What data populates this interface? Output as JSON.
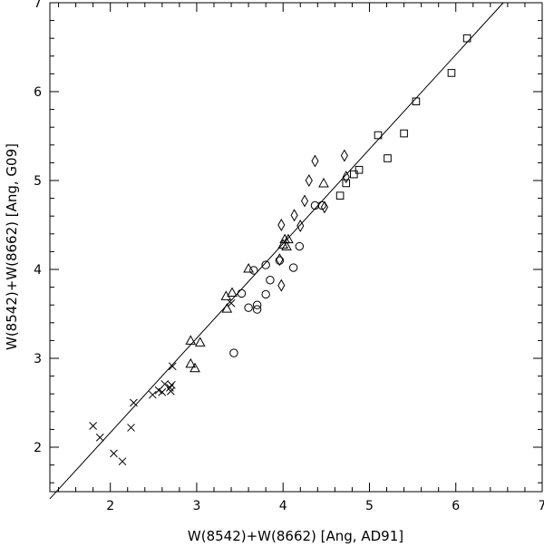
{
  "chart_data": {
    "type": "scatter",
    "title": "",
    "xlabel": "W(8542)+W(8662) [Ang, AD91]",
    "ylabel": "W(8542)+W(8662) [Ang, G09]",
    "xlim": [
      1.3,
      7.0
    ],
    "ylim": [
      1.5,
      7.0
    ],
    "xticks": [
      "2",
      "3",
      "4",
      "5",
      "6",
      "7"
    ],
    "yticks": [
      "2",
      "3",
      "4",
      "5",
      "6",
      "7"
    ],
    "grid": false,
    "reference_line": {
      "label": "",
      "points": [
        [
          1.3,
          1.42
        ],
        [
          6.55,
          7.0
        ]
      ]
    },
    "series": [
      {
        "marker": "cross",
        "points": [
          [
            1.8,
            2.24
          ],
          [
            1.88,
            2.11
          ],
          [
            2.04,
            1.93
          ],
          [
            2.14,
            1.84
          ],
          [
            2.24,
            2.22
          ],
          [
            2.27,
            2.5
          ],
          [
            2.49,
            2.59
          ],
          [
            2.56,
            2.64
          ],
          [
            2.6,
            2.62
          ],
          [
            2.63,
            2.71
          ],
          [
            2.69,
            2.67
          ],
          [
            2.71,
            2.7
          ],
          [
            2.7,
            2.63
          ],
          [
            2.72,
            2.91
          ],
          [
            3.4,
            3.62
          ]
        ]
      },
      {
        "marker": "triangle",
        "points": [
          [
            2.93,
            3.2
          ],
          [
            2.93,
            2.94
          ],
          [
            2.98,
            2.89
          ],
          [
            3.04,
            3.18
          ],
          [
            3.34,
            3.7
          ],
          [
            3.35,
            3.56
          ],
          [
            3.41,
            3.74
          ],
          [
            3.6,
            4.01
          ],
          [
            4.02,
            4.34
          ],
          [
            4.06,
            4.34
          ],
          [
            4.0,
            4.28
          ],
          [
            4.04,
            4.26
          ],
          [
            4.47,
            4.97
          ]
        ]
      },
      {
        "marker": "circle",
        "points": [
          [
            3.43,
            3.06
          ],
          [
            3.52,
            3.73
          ],
          [
            3.6,
            3.57
          ],
          [
            3.66,
            3.99
          ],
          [
            3.7,
            3.6
          ],
          [
            3.7,
            3.55
          ],
          [
            3.8,
            4.05
          ],
          [
            3.8,
            3.72
          ],
          [
            3.85,
            3.88
          ],
          [
            3.96,
            4.1
          ],
          [
            4.12,
            4.02
          ],
          [
            4.19,
            4.26
          ],
          [
            4.37,
            4.72
          ],
          [
            4.45,
            4.72
          ]
        ]
      },
      {
        "marker": "diamond",
        "points": [
          [
            3.96,
            4.11
          ],
          [
            3.98,
            4.5
          ],
          [
            3.98,
            3.82
          ],
          [
            4.13,
            4.61
          ],
          [
            4.2,
            4.49
          ],
          [
            4.25,
            4.77
          ],
          [
            4.3,
            5.0
          ],
          [
            4.37,
            5.22
          ],
          [
            4.48,
            4.7
          ],
          [
            4.71,
            5.28
          ],
          [
            4.73,
            5.04
          ]
        ]
      },
      {
        "marker": "square",
        "points": [
          [
            4.66,
            4.83
          ],
          [
            4.73,
            4.97
          ],
          [
            4.82,
            5.07
          ],
          [
            4.88,
            5.12
          ],
          [
            5.1,
            5.51
          ],
          [
            5.21,
            5.25
          ],
          [
            5.4,
            5.53
          ],
          [
            5.54,
            5.89
          ],
          [
            5.95,
            6.21
          ],
          [
            6.13,
            6.6
          ]
        ]
      }
    ]
  }
}
